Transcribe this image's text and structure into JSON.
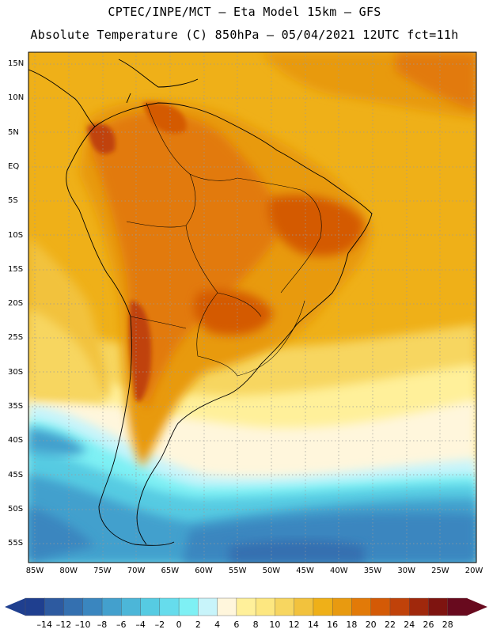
{
  "header": {
    "line1": "CPTEC/INPE/MCT –  Eta Model 15km – GFS",
    "line2": "Absolute Temperature (C) 850hPa – 05/04/2021 12UTC fct=11h"
  },
  "map": {
    "lat_labels": [
      "15N",
      "10N",
      "5N",
      "EQ",
      "5S",
      "10S",
      "15S",
      "20S",
      "25S",
      "30S",
      "35S",
      "40S",
      "45S",
      "50S",
      "55S"
    ],
    "lon_labels": [
      "85W",
      "80W",
      "75W",
      "70W",
      "65W",
      "60W",
      "55W",
      "50W",
      "45W",
      "40W",
      "35W",
      "30W",
      "25W",
      "20W"
    ]
  },
  "colorbar": {
    "labels": [
      "-14",
      "-12",
      "-10",
      "-8",
      "-6",
      "-4",
      "-2",
      "0",
      "2",
      "4",
      "6",
      "8",
      "10",
      "12",
      "14",
      "16",
      "18",
      "20",
      "22",
      "24",
      "26",
      "28"
    ],
    "colors": [
      "#1f3f8f",
      "#2d5aa0",
      "#3470b0",
      "#3a86bf",
      "#43a0cd",
      "#4cb6d8",
      "#56cbe2",
      "#66dcec",
      "#7ef0f4",
      "#c8f4fa",
      "#fff6dc",
      "#fff09a",
      "#fde780",
      "#f7d660",
      "#f2c23d",
      "#efb018",
      "#e89a10",
      "#e27a08",
      "#d45a06",
      "#c0420a",
      "#a0280c",
      "#7e1410",
      "#680a1e"
    ]
  }
}
